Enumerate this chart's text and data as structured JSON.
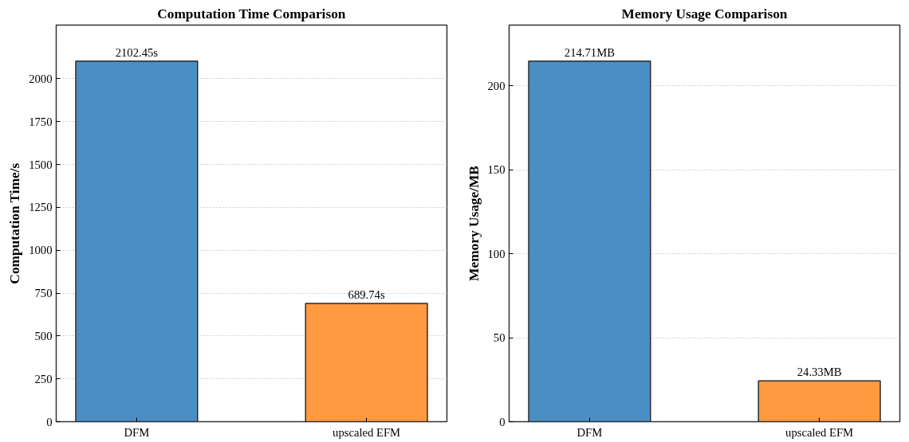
{
  "chart_data": [
    {
      "type": "bar",
      "title": "Computation Time Comparison",
      "ylabel": "Computation Time/s",
      "categories": [
        "DFM",
        "upscaled EFM"
      ],
      "values": [
        2102.45,
        689.74
      ],
      "colors": [
        "#4a8fc4",
        "#ff9a40"
      ],
      "value_labels": [
        "2102.45s",
        "689.74s"
      ],
      "ylim": [
        0,
        2312.7
      ],
      "yticks": [
        0,
        250,
        500,
        750,
        1000,
        1250,
        1500,
        1750,
        2000
      ],
      "grid": "y"
    },
    {
      "type": "bar",
      "title": "Memory Usage Comparison",
      "ylabel": "Memory Usage/MB",
      "categories": [
        "DFM",
        "upscaled EFM"
      ],
      "values": [
        214.71,
        24.33
      ],
      "colors": [
        "#4a8fc4",
        "#ff9a40"
      ],
      "value_labels": [
        "214.71MB",
        "24.33MB"
      ],
      "ylim": [
        0,
        236.2
      ],
      "yticks": [
        0,
        50,
        100,
        150,
        200
      ],
      "grid": "y"
    }
  ]
}
